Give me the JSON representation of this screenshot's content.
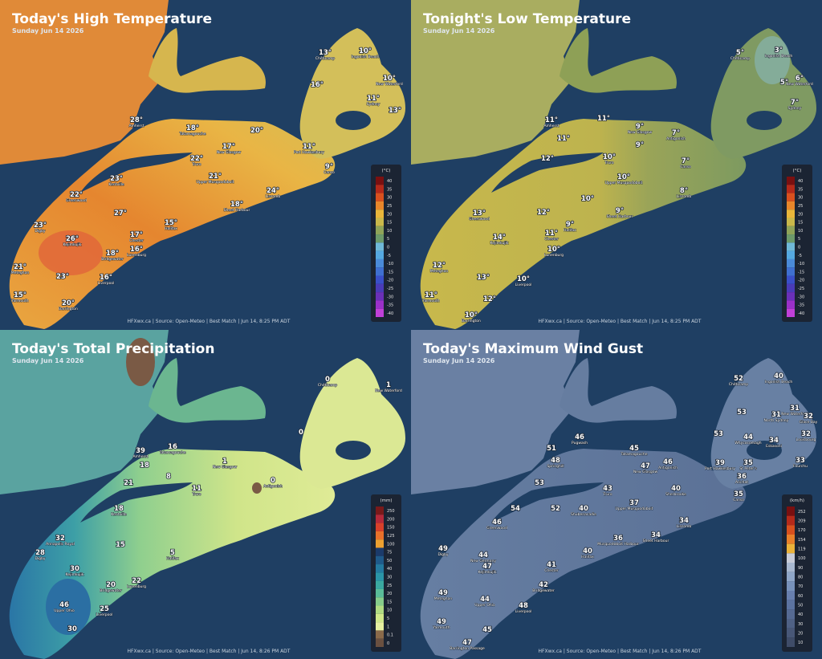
{
  "panels": [
    {
      "title": "Today's High Temperature",
      "subtitle": "Sunday Jun 14 2026",
      "unit": "(°C)",
      "legend": [
        40,
        35,
        30,
        25,
        20,
        15,
        10,
        5,
        0,
        -5,
        -10,
        -15,
        -20,
        -25,
        -30,
        -35,
        -40
      ],
      "footer": "HFXwx.ca | Source: Open-Meteo | Best Match | Jun 14, 8:25 PM ADT",
      "labels": [
        {
          "value": "26°",
          "place": "Kejimkujik"
        },
        {
          "value": "23°",
          "place": "Digby"
        },
        {
          "value": "21°",
          "place": "Meteghan"
        },
        {
          "value": "15°",
          "place": "Yarmouth"
        },
        {
          "value": "20°",
          "place": "Barrington"
        },
        {
          "value": "23°"
        },
        {
          "value": "16°",
          "place": "Liverpool"
        },
        {
          "value": "18°",
          "place": "Bridgewater"
        },
        {
          "value": "17°",
          "place": "Chester"
        },
        {
          "value": "16°",
          "place": "Lunenburg"
        },
        {
          "value": "15°",
          "place": "Halifax"
        },
        {
          "value": "18°",
          "place": "Sheet Harbour"
        },
        {
          "value": "24°",
          "place": "Liscomb"
        },
        {
          "value": "22°",
          "place": "Truro"
        },
        {
          "value": "21°",
          "place": "Upper Musquodoboit"
        },
        {
          "value": "23°",
          "place": "Kentville"
        },
        {
          "value": "22°",
          "place": "Greenwood"
        },
        {
          "value": "27°"
        },
        {
          "value": "28°",
          "place": "Amherst"
        },
        {
          "value": "18°",
          "place": "Tatamagouche"
        },
        {
          "value": "17°",
          "place": "New Glasgow"
        },
        {
          "value": "20°"
        },
        {
          "value": "9°",
          "place": "Canso"
        },
        {
          "value": "11°",
          "place": "Port Hawkesbury"
        },
        {
          "value": "16°"
        },
        {
          "value": "13°",
          "place": "Chéticamp"
        },
        {
          "value": "10°",
          "place": "Ingonish Beach"
        },
        {
          "value": "10°",
          "place": "New Waterford"
        },
        {
          "value": "11°",
          "place": "Sydney"
        },
        {
          "value": "13°"
        }
      ]
    },
    {
      "title": "Tonight's Low Temperature",
      "subtitle": "Sunday Jun 14 2026",
      "unit": "(°C)",
      "legend": [
        40,
        35,
        30,
        25,
        20,
        15,
        10,
        5,
        0,
        -5,
        -10,
        -15,
        -20,
        -25,
        -30,
        -35,
        -40
      ],
      "footer": "HFXwx.ca | Source: Open-Meteo | Best Match | Jun 14, 8:25 PM ADT",
      "labels": [
        {
          "value": "5°",
          "place": "Chéticamp"
        },
        {
          "value": "3°",
          "place": "Ingonish Beach"
        },
        {
          "value": "5°"
        },
        {
          "value": "6°",
          "place": "New Waterford"
        },
        {
          "value": "7°",
          "place": "Sydney"
        },
        {
          "value": "11°",
          "place": "Amherst"
        },
        {
          "value": "11°"
        },
        {
          "value": "11°"
        },
        {
          "value": "12°"
        },
        {
          "value": "9°",
          "place": "New Glasgow"
        },
        {
          "value": "9°"
        },
        {
          "value": "7°",
          "place": "Antigonish"
        },
        {
          "value": "7°",
          "place": "Canso"
        },
        {
          "value": "10°",
          "place": "Truro"
        },
        {
          "value": "10°",
          "place": "Upper Musquodoboit"
        },
        {
          "value": "8°",
          "place": "Liscomb"
        },
        {
          "value": "9°",
          "place": "Sheet Harbour"
        },
        {
          "value": "10°"
        },
        {
          "value": "12°"
        },
        {
          "value": "13°",
          "place": "Greenwood"
        },
        {
          "value": "9°",
          "place": "Halifax"
        },
        {
          "value": "11°",
          "place": "Chester"
        },
        {
          "value": "10°",
          "place": "Lunenburg"
        },
        {
          "value": "14°",
          "place": "Kejimkujik"
        },
        {
          "value": "12°",
          "place": "Meteghan"
        },
        {
          "value": "13°"
        },
        {
          "value": "10°",
          "place": "Liverpool"
        },
        {
          "value": "11°",
          "place": "Yarmouth"
        },
        {
          "value": "12°"
        },
        {
          "value": "10°",
          "place": "Barrington"
        }
      ]
    },
    {
      "title": "Today's Total Precipitation",
      "subtitle": "Sunday Jun 14 2026",
      "unit": "(mm)",
      "legend": [
        250,
        200,
        150,
        125,
        100,
        75,
        50,
        40,
        30,
        25,
        20,
        15,
        10,
        5,
        1,
        0.1,
        0
      ],
      "footer": "HFXwx.ca | Source: Open-Meteo | Best Match | Jun 14, 8:26 PM ADT",
      "labels": [
        {
          "value": "0",
          "place": "Chéticamp"
        },
        {
          "value": "1",
          "place": "New Waterford"
        },
        {
          "value": "0"
        },
        {
          "value": "39",
          "place": "Amherst"
        },
        {
          "value": "16",
          "place": "Tatamagouche"
        },
        {
          "value": "18"
        },
        {
          "value": "21"
        },
        {
          "value": "11",
          "place": "Truro"
        },
        {
          "value": "1",
          "place": "New Glasgow"
        },
        {
          "value": "8"
        },
        {
          "value": "0",
          "place": "Antigonish"
        },
        {
          "value": "18",
          "place": "Kentville"
        },
        {
          "value": "32",
          "place": "Annapolis Royal"
        },
        {
          "value": "28",
          "place": "Digby"
        },
        {
          "value": "30",
          "place": "Kejimkujik"
        },
        {
          "value": "15"
        },
        {
          "value": "20",
          "place": "Bridgewater"
        },
        {
          "value": "22",
          "place": "Lunenburg"
        },
        {
          "value": "25",
          "place": "Liverpool"
        },
        {
          "value": "46",
          "place": "Upper Ohio"
        },
        {
          "value": "30"
        },
        {
          "value": "5",
          "place": "Halifax"
        }
      ]
    },
    {
      "title": "Today's Maximum Wind Gust",
      "subtitle": "Sunday Jun 14 2026",
      "unit": "(km/h)",
      "legend": [
        252,
        209,
        170,
        154,
        119,
        100,
        90,
        80,
        70,
        60,
        50,
        40,
        30,
        20,
        10
      ],
      "footer": "HFXwx.ca | Source: Open-Meteo | Best Match | Jun 14, 8:26 PM ADT",
      "labels": [
        {
          "value": "52",
          "place": "Chéticamp"
        },
        {
          "value": "40",
          "place": "Ingonish Beach"
        },
        {
          "value": "31",
          "place": "New Waterford"
        },
        {
          "value": "31",
          "place": "North Sydney"
        },
        {
          "value": "53"
        },
        {
          "value": "53"
        },
        {
          "value": "44",
          "place": "Whycocomagh"
        },
        {
          "value": "34",
          "place": "Eskasoni"
        },
        {
          "value": "32",
          "place": "Glace Bay"
        },
        {
          "value": "32",
          "place": "Louisbourg"
        },
        {
          "value": "33",
          "place": "Fourchu"
        },
        {
          "value": "39",
          "place": "Port Hawkesbury"
        },
        {
          "value": "35",
          "place": "St Peter's"
        },
        {
          "value": "36",
          "place": "Arichat"
        },
        {
          "value": "35",
          "place": "Canso"
        },
        {
          "value": "40",
          "place": "Sherbrooke"
        },
        {
          "value": "46",
          "place": "Antigonish"
        },
        {
          "value": "47",
          "place": "New Glasgow"
        },
        {
          "value": "45",
          "place": "Tatamagouche"
        },
        {
          "value": "46",
          "place": "Pugwash"
        },
        {
          "value": "51"
        },
        {
          "value": "48",
          "place": "Springhill"
        },
        {
          "value": "53"
        },
        {
          "value": "43",
          "place": "Truro"
        },
        {
          "value": "37",
          "place": "Upper Musquodoboit"
        },
        {
          "value": "40",
          "place": "Shubenacadie"
        },
        {
          "value": "54"
        },
        {
          "value": "52"
        },
        {
          "value": "46",
          "place": "Greenwood"
        },
        {
          "value": "40",
          "place": "Halifax"
        },
        {
          "value": "36",
          "place": "Musquodoboit Harbour"
        },
        {
          "value": "34",
          "place": "Sheet Harbour"
        },
        {
          "value": "34",
          "place": "Liscomb"
        },
        {
          "value": "49",
          "place": "Digby"
        },
        {
          "value": "44",
          "place": "New Germany"
        },
        {
          "value": "47",
          "place": "Kejimkujik"
        },
        {
          "value": "41",
          "place": "Chester"
        },
        {
          "value": "42",
          "place": "Bridgewater"
        },
        {
          "value": "49",
          "place": "Meteghan"
        },
        {
          "value": "44",
          "place": "Upper Ohio"
        },
        {
          "value": "48",
          "place": "Liverpool"
        },
        {
          "value": "49",
          "place": "Yarmouth"
        },
        {
          "value": "45"
        },
        {
          "value": "47",
          "place": "Barrington Passage"
        }
      ]
    }
  ]
}
